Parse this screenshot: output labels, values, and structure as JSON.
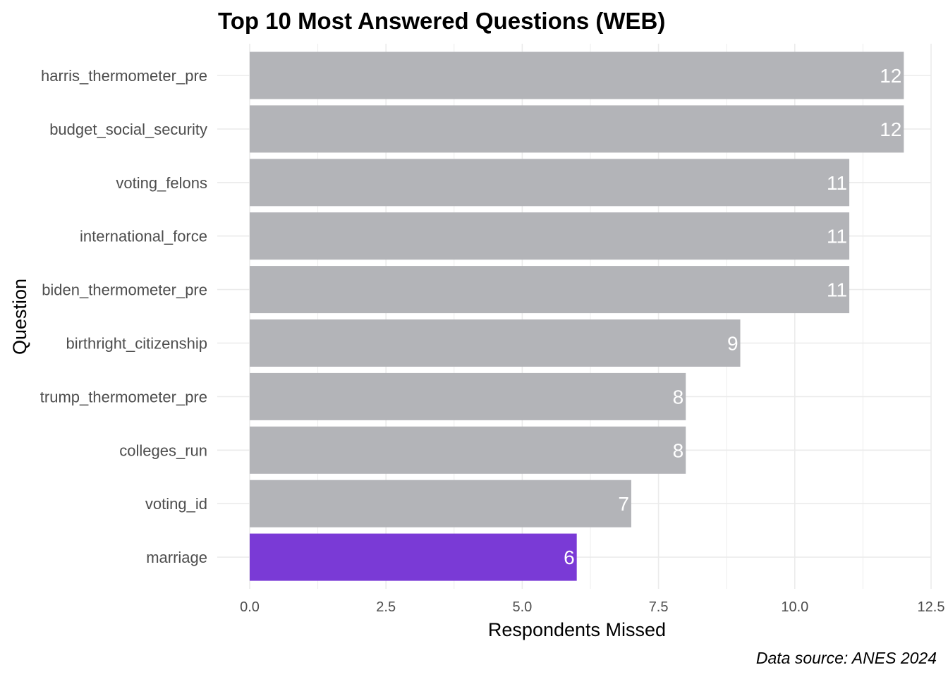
{
  "chart_data": {
    "type": "bar",
    "orientation": "horizontal",
    "title": "Top 10 Most Answered Questions (WEB)",
    "xlabel": "Respondents Missed",
    "ylabel": "Question",
    "caption": "Data source: ANES 2024",
    "xlim": [
      0,
      12.5
    ],
    "xticks": [
      "0.0",
      "2.5",
      "5.0",
      "7.5",
      "10.0",
      "12.5"
    ],
    "grid": true,
    "legend": "none",
    "categories": [
      "harris_thermometer_pre",
      "budget_social_security",
      "voting_felons",
      "international_force",
      "biden_thermometer_pre",
      "birthright_citizenship",
      "trump_thermometer_pre",
      "colleges_run",
      "voting_id",
      "marriage"
    ],
    "values": [
      12,
      12,
      11,
      11,
      11,
      9,
      8,
      8,
      7,
      6
    ],
    "bar_colors": [
      "#b3b4b8",
      "#b3b4b8",
      "#b3b4b8",
      "#b3b4b8",
      "#b3b4b8",
      "#b3b4b8",
      "#b3b4b8",
      "#b3b4b8",
      "#b3b4b8",
      "#7a3ad6"
    ],
    "label_color": "#ffffff",
    "grid_color": "#ebebeb"
  }
}
